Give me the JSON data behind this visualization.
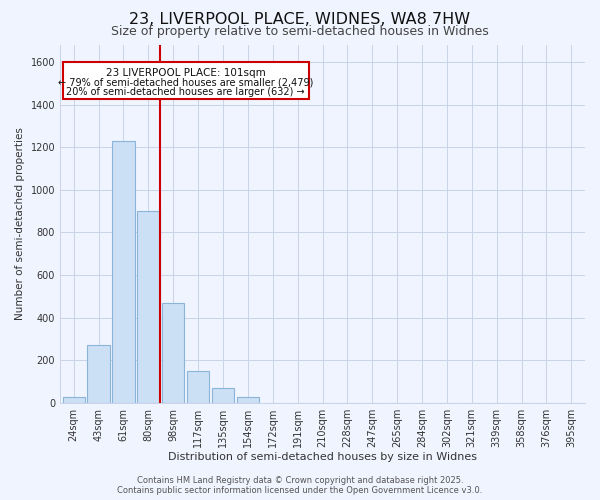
{
  "title": "23, LIVERPOOL PLACE, WIDNES, WA8 7HW",
  "subtitle": "Size of property relative to semi-detached houses in Widnes",
  "bar_labels": [
    "24sqm",
    "43sqm",
    "61sqm",
    "80sqm",
    "98sqm",
    "117sqm",
    "135sqm",
    "154sqm",
    "172sqm",
    "191sqm",
    "210sqm",
    "228sqm",
    "247sqm",
    "265sqm",
    "284sqm",
    "302sqm",
    "321sqm",
    "339sqm",
    "358sqm",
    "376sqm",
    "395sqm"
  ],
  "bar_values": [
    28,
    270,
    1230,
    900,
    470,
    150,
    70,
    28,
    0,
    0,
    0,
    0,
    0,
    0,
    0,
    0,
    0,
    0,
    0,
    0,
    0
  ],
  "bar_color": "#cce0f5",
  "bar_edge_color": "#8ab4d8",
  "xlabel": "Distribution of semi-detached houses by size in Widnes",
  "ylabel": "Number of semi-detached properties",
  "ylim": [
    0,
    1680
  ],
  "yticks": [
    0,
    200,
    400,
    600,
    800,
    1000,
    1200,
    1400,
    1600
  ],
  "vline_color": "#cc0000",
  "annotation_title": "23 LIVERPOOL PLACE: 101sqm",
  "annotation_line1": "← 79% of semi-detached houses are smaller (2,479)",
  "annotation_line2": "20% of semi-detached houses are larger (632) →",
  "footer1": "Contains HM Land Registry data © Crown copyright and database right 2025.",
  "footer2": "Contains public sector information licensed under the Open Government Licence v3.0.",
  "bg_color": "#f0f4ff",
  "grid_color": "#c8d4e8",
  "title_fontsize": 11.5,
  "subtitle_fontsize": 9,
  "xlabel_fontsize": 8,
  "ylabel_fontsize": 7.5,
  "tick_fontsize": 7,
  "footer_fontsize": 6,
  "annot_title_fontsize": 7.5,
  "annot_text_fontsize": 7
}
